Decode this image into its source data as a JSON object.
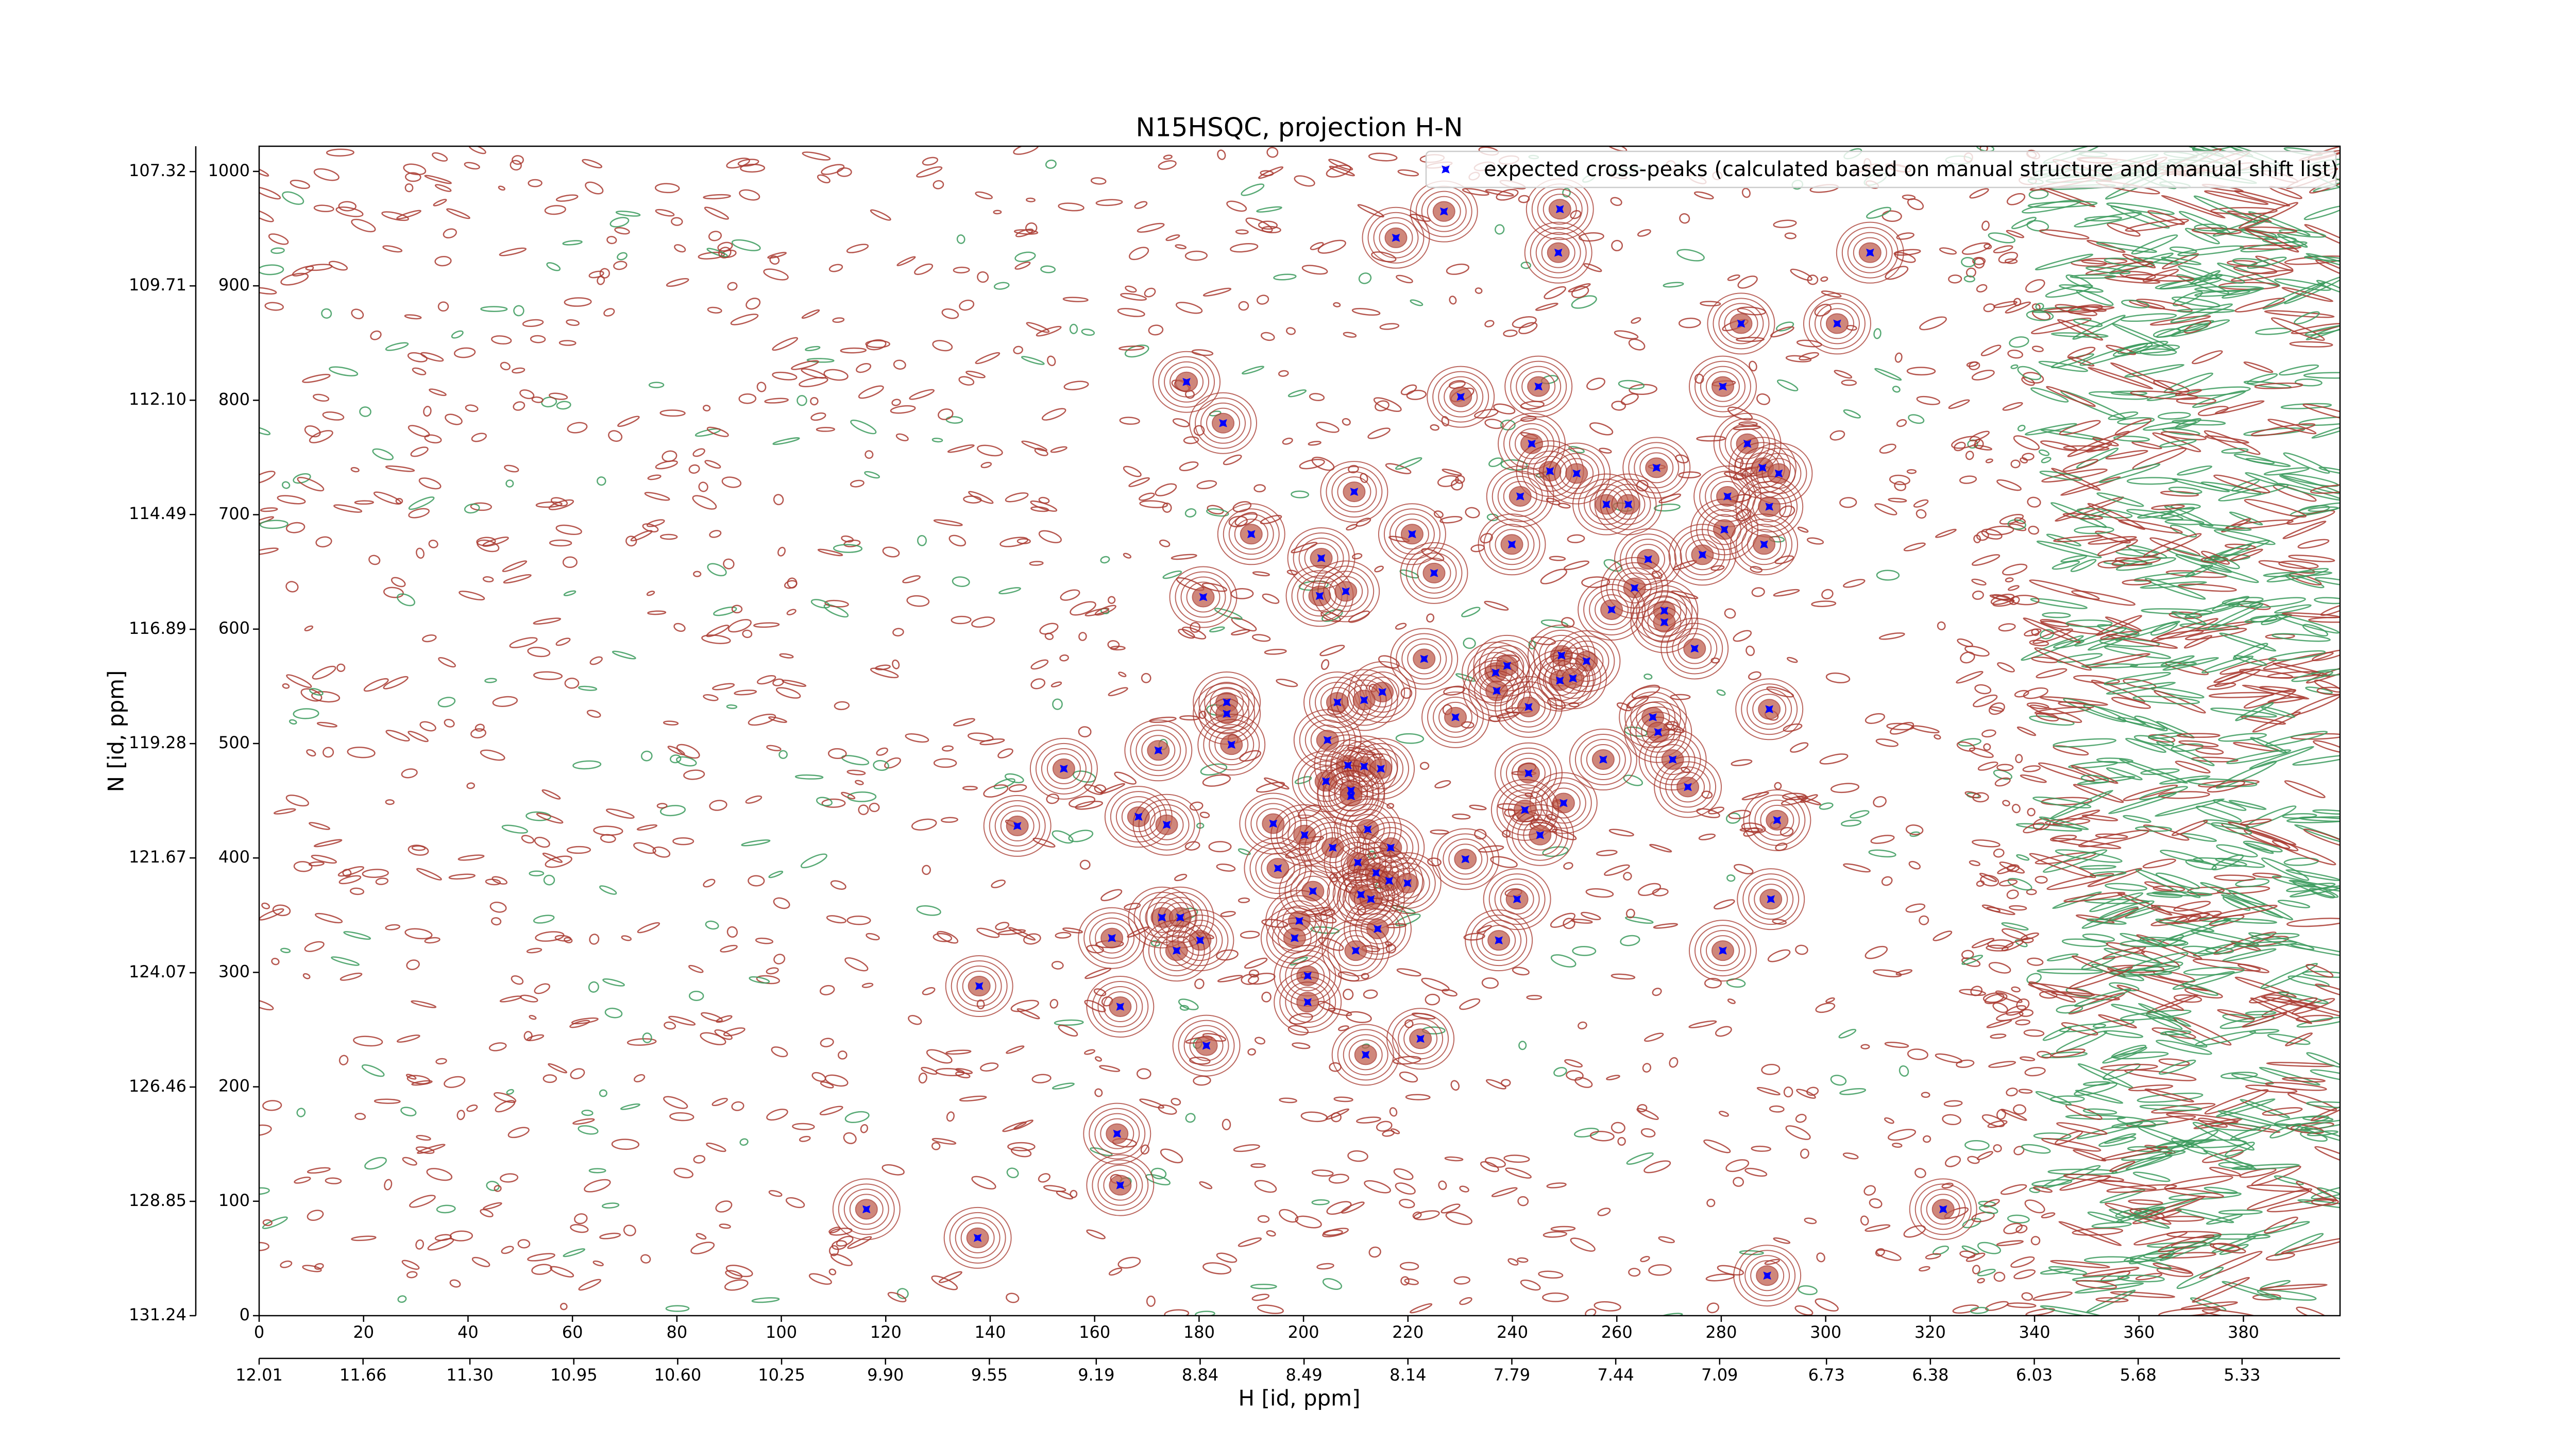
{
  "chart_data": {
    "type": "scatter",
    "title": "N15HSQC, projection H-N",
    "x_label": "H [id, ppm]",
    "y_label": "N [id, ppm]",
    "xlim": [
      0,
      398.5
    ],
    "xticks": [
      0,
      20,
      40,
      60,
      80,
      100,
      120,
      140,
      160,
      180,
      200,
      220,
      240,
      260,
      280,
      300,
      320,
      340,
      360,
      380
    ],
    "x2lim": [
      12.01,
      5.0
    ],
    "x2ticks": [
      12.01,
      11.66,
      {
        "value": 11.3,
        "label": "11.30"
      },
      10.95,
      {
        "value": 10.6,
        "label": "10.60"
      },
      10.25,
      {
        "value": 9.9,
        "label": "9.90"
      },
      9.55,
      9.19,
      8.84,
      8.49,
      8.14,
      7.79,
      7.44,
      7.09,
      6.73,
      6.38,
      6.03,
      5.68,
      5.33
    ],
    "ylim": [
      0,
      1022
    ],
    "yticks": [
      0,
      100,
      200,
      300,
      400,
      500,
      600,
      700,
      800,
      900,
      1000
    ],
    "y2lim": [
      131.24,
      106.79
    ],
    "y2ticks": [
      131.24,
      128.85,
      126.46,
      124.07,
      121.67,
      119.28,
      116.89,
      114.49,
      {
        "value": 112.1,
        "label": "112.10"
      },
      109.71,
      107.32
    ],
    "legend": "upper right",
    "x": [
      217.7,
      226.9,
      249.1,
      248.8,
      308.5,
      283.8,
      302.2,
      177.6,
      184.6,
      230.1,
      245,
      280.3,
      243.7,
      285,
      247.2,
      252.3,
      267.6,
      287.9,
      291,
      209.7,
      241.5,
      258,
      262.2,
      281.2,
      289.2,
      190,
      220.8,
      239.9,
      280.6,
      288.2,
      276.4,
      203.4,
      266,
      225,
      180.8,
      203.1,
      208.1,
      263.4,
      259,
      269.1,
      269.1,
      274.9,
      223.1,
      236.8,
      239,
      249.4,
      254.2,
      249.1,
      251.6,
      237,
      215.1,
      206.5,
      211.6,
      243.1,
      185.3,
      185.3,
      229.1,
      266.9,
      289.2,
      267.9,
      172.2,
      186.2,
      204.6,
      257.4,
      270.7,
      154.1,
      208.5,
      211.6,
      214.8,
      243.1,
      204.3,
      209.1,
      209.1,
      273.6,
      249.8,
      168.4,
      145.2,
      173.8,
      194.2,
      242.4,
      290.7,
      200.2,
      212.3,
      245.3,
      205.6,
      216.7,
      195.1,
      210.4,
      213.9,
      231,
      216.4,
      201.8,
      219.9,
      211,
      212.9,
      240.9,
      289.5,
      199.2,
      163.3,
      172.9,
      176.4,
      180.2,
      198.3,
      214.2,
      175.7,
      210,
      237.4,
      280.3,
      137.9,
      200.8,
      200.8,
      164.9,
      211.9,
      222.4,
      181.4,
      164.3,
      164.9,
      116.3,
      137.6,
      322.5,
      288.8
    ],
    "series": [
      {
        "name": "expected cross-peaks (calculated based on manual structure and manual shift list)",
        "color": "#0000ff",
        "values": [
          942,
          965,
          967,
          929,
          929,
          867,
          867,
          816,
          780,
          803,
          812,
          812,
          762,
          762,
          738,
          736,
          741,
          741,
          736,
          720,
          716,
          709,
          709,
          716,
          707,
          683,
          683,
          674,
          687,
          674,
          665,
          662,
          661,
          649,
          628,
          629,
          633,
          636,
          617,
          616,
          606,
          583,
          574,
          562,
          568,
          577,
          572,
          555,
          557,
          546,
          545,
          536,
          538,
          532,
          536,
          526,
          523,
          523,
          530,
          510,
          494,
          499,
          503,
          486,
          486,
          478,
          481,
          480,
          478,
          474,
          467,
          459,
          454,
          462,
          448,
          436,
          428,
          429,
          430,
          442,
          433,
          420,
          425,
          420,
          409,
          409,
          391,
          396,
          387,
          399,
          380,
          371,
          378,
          368,
          364,
          364,
          364,
          345,
          330,
          348,
          348,
          328,
          330,
          338,
          319,
          319,
          328,
          319,
          288,
          297,
          274,
          270,
          228,
          242,
          236,
          159,
          114,
          93,
          68,
          93,
          35
        ]
      }
    ]
  }
}
